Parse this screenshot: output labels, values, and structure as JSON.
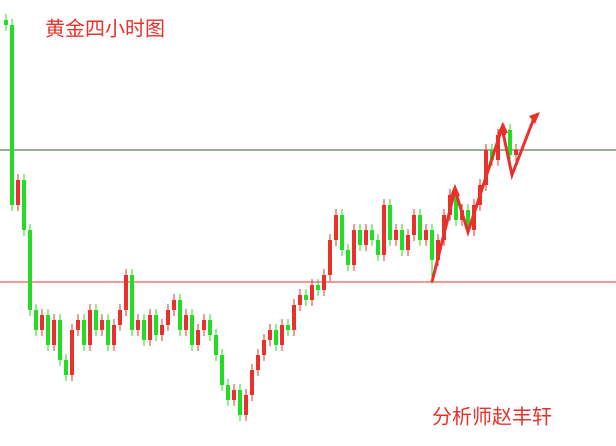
{
  "chart_data": {
    "type": "candlestick",
    "title": "黄金四小时图",
    "annotation": "分析师赵丰轩",
    "up_color": "#e8312a",
    "down_color": "#22dd22",
    "ylim": [
      0,
      446
    ],
    "hlines": [
      {
        "value": 296,
        "color": "#3a5a3a"
      },
      {
        "value": 164,
        "color": "#e8312a"
      }
    ],
    "ohlc": [
      [
        426,
        432,
        415,
        421
      ],
      [
        421,
        427,
        235,
        241
      ],
      [
        241,
        272,
        235,
        266
      ],
      [
        266,
        272,
        210,
        216
      ],
      [
        216,
        222,
        130,
        136
      ],
      [
        136,
        142,
        110,
        116
      ],
      [
        116,
        137,
        110,
        131
      ],
      [
        131,
        137,
        95,
        101
      ],
      [
        101,
        132,
        95,
        126
      ],
      [
        126,
        132,
        80,
        86
      ],
      [
        86,
        92,
        65,
        71
      ],
      [
        71,
        122,
        65,
        116
      ],
      [
        116,
        132,
        110,
        126
      ],
      [
        126,
        132,
        95,
        101
      ],
      [
        101,
        142,
        95,
        136
      ],
      [
        136,
        142,
        110,
        116
      ],
      [
        116,
        132,
        110,
        126
      ],
      [
        126,
        132,
        95,
        101
      ],
      [
        101,
        127,
        95,
        121
      ],
      [
        121,
        142,
        115,
        136
      ],
      [
        136,
        177,
        130,
        171
      ],
      [
        171,
        177,
        110,
        116
      ],
      [
        116,
        132,
        110,
        126
      ],
      [
        126,
        132,
        100,
        106
      ],
      [
        106,
        137,
        100,
        131
      ],
      [
        131,
        137,
        105,
        111
      ],
      [
        111,
        127,
        105,
        121
      ],
      [
        121,
        142,
        115,
        136
      ],
      [
        136,
        152,
        130,
        146
      ],
      [
        146,
        152,
        110,
        116
      ],
      [
        116,
        137,
        110,
        131
      ],
      [
        131,
        137,
        95,
        101
      ],
      [
        101,
        122,
        95,
        116
      ],
      [
        116,
        132,
        110,
        126
      ],
      [
        126,
        132,
        105,
        111
      ],
      [
        111,
        117,
        85,
        91
      ],
      [
        91,
        97,
        55,
        61
      ],
      [
        61,
        67,
        40,
        46
      ],
      [
        46,
        62,
        40,
        56
      ],
      [
        56,
        62,
        25,
        31
      ],
      [
        31,
        57,
        25,
        51
      ],
      [
        51,
        82,
        45,
        76
      ],
      [
        76,
        97,
        70,
        91
      ],
      [
        91,
        112,
        85,
        106
      ],
      [
        106,
        122,
        100,
        116
      ],
      [
        116,
        122,
        95,
        101
      ],
      [
        101,
        127,
        95,
        121
      ],
      [
        121,
        127,
        110,
        116
      ],
      [
        116,
        147,
        110,
        141
      ],
      [
        141,
        157,
        135,
        151
      ],
      [
        151,
        157,
        140,
        146
      ],
      [
        146,
        167,
        140,
        161
      ],
      [
        161,
        167,
        150,
        156
      ],
      [
        156,
        177,
        150,
        171
      ],
      [
        171,
        212,
        165,
        206
      ],
      [
        206,
        237,
        200,
        231
      ],
      [
        231,
        237,
        190,
        196
      ],
      [
        196,
        202,
        175,
        181
      ],
      [
        181,
        222,
        175,
        216
      ],
      [
        216,
        222,
        195,
        201
      ],
      [
        201,
        222,
        195,
        216
      ],
      [
        216,
        222,
        200,
        206
      ],
      [
        206,
        212,
        185,
        191
      ],
      [
        191,
        247,
        185,
        241
      ],
      [
        241,
        247,
        200,
        206
      ],
      [
        206,
        222,
        200,
        216
      ],
      [
        216,
        222,
        190,
        196
      ],
      [
        196,
        217,
        190,
        211
      ],
      [
        211,
        237,
        205,
        231
      ],
      [
        231,
        237,
        200,
        206
      ],
      [
        206,
        222,
        200,
        216
      ],
      [
        216,
        222,
        162,
        186
      ],
      [
        186,
        212,
        180,
        206
      ],
      [
        206,
        237,
        200,
        231
      ],
      [
        231,
        257,
        225,
        251
      ],
      [
        251,
        257,
        220,
        226
      ],
      [
        226,
        242,
        220,
        236
      ],
      [
        236,
        242,
        210,
        216
      ],
      [
        216,
        247,
        210,
        241
      ],
      [
        241,
        267,
        235,
        261
      ],
      [
        261,
        302,
        255,
        296
      ],
      [
        296,
        302,
        280,
        286
      ],
      [
        286,
        317,
        280,
        311
      ],
      [
        311,
        322,
        305,
        316
      ],
      [
        316,
        322,
        285,
        291
      ],
      [
        291,
        302,
        285,
        296
      ]
    ]
  }
}
